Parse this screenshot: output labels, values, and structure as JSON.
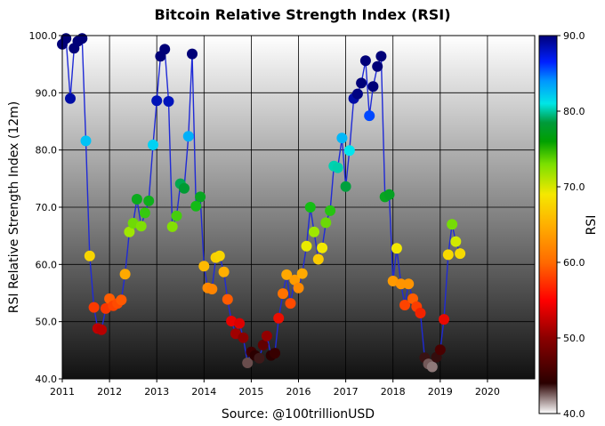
{
  "chart_data": {
    "type": "scatter",
    "title": "Bitcoin Relative Strength Index (RSI)",
    "xlabel": "Source: @100trillionUSD",
    "ylabel": "RSI Relative Strength Index (12m)",
    "colorbar_label": "RSI",
    "xlim": [
      2011.0,
      2021.0
    ],
    "ylim": [
      40.0,
      100.0
    ],
    "x_ticks": [
      2011,
      2012,
      2013,
      2014,
      2015,
      2016,
      2017,
      2018,
      2019,
      2020
    ],
    "x_tick_labels": [
      "2011",
      "2012",
      "2013",
      "2014",
      "2015",
      "2016",
      "2017",
      "2018",
      "2019",
      "2020"
    ],
    "y_ticks": [
      40,
      50,
      60,
      70,
      80,
      90,
      100
    ],
    "y_tick_labels": [
      "40.0",
      "50.0",
      "60.0",
      "70.0",
      "80.0",
      "90.0",
      "100.0"
    ],
    "colorbar_ticks": [
      40,
      50,
      60,
      70,
      80,
      90
    ],
    "colorbar_tick_labels": [
      "40.0",
      "50.0",
      "60.0",
      "70.0",
      "80.0",
      "90.0"
    ],
    "colorbar_range": [
      40,
      90
    ],
    "grid": true,
    "line_color": "#1f2ad6",
    "points": [
      {
        "x": 2011.0,
        "y": 98.5
      },
      {
        "x": 2011.08,
        "y": 99.5
      },
      {
        "x": 2011.17,
        "y": 89.0
      },
      {
        "x": 2011.25,
        "y": 97.8
      },
      {
        "x": 2011.33,
        "y": 99.0
      },
      {
        "x": 2011.42,
        "y": 99.5
      },
      {
        "x": 2011.5,
        "y": 81.6
      },
      {
        "x": 2011.58,
        "y": 61.5
      },
      {
        "x": 2011.67,
        "y": 52.5
      },
      {
        "x": 2011.75,
        "y": 48.8
      },
      {
        "x": 2011.83,
        "y": 48.6
      },
      {
        "x": 2011.92,
        "y": 52.3
      },
      {
        "x": 2012.0,
        "y": 54.0
      },
      {
        "x": 2012.08,
        "y": 52.8
      },
      {
        "x": 2012.17,
        "y": 53.2
      },
      {
        "x": 2012.25,
        "y": 53.8
      },
      {
        "x": 2012.33,
        "y": 58.3
      },
      {
        "x": 2012.42,
        "y": 65.7
      },
      {
        "x": 2012.5,
        "y": 67.2
      },
      {
        "x": 2012.58,
        "y": 71.4
      },
      {
        "x": 2012.67,
        "y": 66.7
      },
      {
        "x": 2012.75,
        "y": 69.0
      },
      {
        "x": 2012.83,
        "y": 71.1
      },
      {
        "x": 2012.92,
        "y": 80.9
      },
      {
        "x": 2013.0,
        "y": 88.6
      },
      {
        "x": 2013.08,
        "y": 96.4
      },
      {
        "x": 2013.17,
        "y": 97.6
      },
      {
        "x": 2013.25,
        "y": 88.5
      },
      {
        "x": 2013.33,
        "y": 66.6
      },
      {
        "x": 2013.42,
        "y": 68.5
      },
      {
        "x": 2013.5,
        "y": 74.1
      },
      {
        "x": 2013.58,
        "y": 73.3
      },
      {
        "x": 2013.67,
        "y": 82.4
      },
      {
        "x": 2013.75,
        "y": 96.8
      },
      {
        "x": 2013.83,
        "y": 70.2
      },
      {
        "x": 2013.92,
        "y": 71.8
      },
      {
        "x": 2014.0,
        "y": 59.7
      },
      {
        "x": 2014.08,
        "y": 55.9
      },
      {
        "x": 2014.17,
        "y": 55.7
      },
      {
        "x": 2014.25,
        "y": 61.2
      },
      {
        "x": 2014.33,
        "y": 61.5
      },
      {
        "x": 2014.42,
        "y": 58.7
      },
      {
        "x": 2014.5,
        "y": 53.9
      },
      {
        "x": 2014.58,
        "y": 50.1
      },
      {
        "x": 2014.67,
        "y": 47.9
      },
      {
        "x": 2014.75,
        "y": 49.7
      },
      {
        "x": 2014.83,
        "y": 47.2
      },
      {
        "x": 2014.92,
        "y": 42.8
      },
      {
        "x": 2015.0,
        "y": 44.7
      },
      {
        "x": 2015.08,
        "y": 44.1
      },
      {
        "x": 2015.17,
        "y": 43.6
      },
      {
        "x": 2015.25,
        "y": 45.9
      },
      {
        "x": 2015.33,
        "y": 47.5
      },
      {
        "x": 2015.42,
        "y": 44.1
      },
      {
        "x": 2015.5,
        "y": 44.5
      },
      {
        "x": 2015.58,
        "y": 50.6
      },
      {
        "x": 2015.67,
        "y": 54.9
      },
      {
        "x": 2015.75,
        "y": 58.2
      },
      {
        "x": 2015.83,
        "y": 53.2
      },
      {
        "x": 2015.92,
        "y": 57.3
      },
      {
        "x": 2016.0,
        "y": 55.9
      },
      {
        "x": 2016.08,
        "y": 58.4
      },
      {
        "x": 2016.17,
        "y": 63.2
      },
      {
        "x": 2016.25,
        "y": 70.0
      },
      {
        "x": 2016.33,
        "y": 65.7
      },
      {
        "x": 2016.42,
        "y": 60.9
      },
      {
        "x": 2016.5,
        "y": 62.9
      },
      {
        "x": 2016.58,
        "y": 67.3
      },
      {
        "x": 2016.67,
        "y": 69.4
      },
      {
        "x": 2016.75,
        "y": 77.2
      },
      {
        "x": 2016.83,
        "y": 76.9
      },
      {
        "x": 2016.92,
        "y": 82.1
      },
      {
        "x": 2017.0,
        "y": 73.6
      },
      {
        "x": 2017.08,
        "y": 79.9
      },
      {
        "x": 2017.17,
        "y": 89.0
      },
      {
        "x": 2017.25,
        "y": 89.8
      },
      {
        "x": 2017.33,
        "y": 91.7
      },
      {
        "x": 2017.42,
        "y": 95.6
      },
      {
        "x": 2017.5,
        "y": 86.0
      },
      {
        "x": 2017.58,
        "y": 91.1
      },
      {
        "x": 2017.67,
        "y": 94.6
      },
      {
        "x": 2017.75,
        "y": 96.4
      },
      {
        "x": 2017.83,
        "y": 71.8
      },
      {
        "x": 2017.92,
        "y": 72.2
      },
      {
        "x": 2018.0,
        "y": 57.1
      },
      {
        "x": 2018.08,
        "y": 62.8
      },
      {
        "x": 2018.17,
        "y": 56.6
      },
      {
        "x": 2018.25,
        "y": 52.9
      },
      {
        "x": 2018.33,
        "y": 56.6
      },
      {
        "x": 2018.42,
        "y": 54.0
      },
      {
        "x": 2018.5,
        "y": 52.6
      },
      {
        "x": 2018.58,
        "y": 51.5
      },
      {
        "x": 2018.67,
        "y": 43.7
      },
      {
        "x": 2018.75,
        "y": 42.6
      },
      {
        "x": 2018.83,
        "y": 42.1
      },
      {
        "x": 2018.92,
        "y": 43.8
      },
      {
        "x": 2019.0,
        "y": 45.1
      },
      {
        "x": 2019.08,
        "y": 50.4
      },
      {
        "x": 2019.17,
        "y": 61.7
      },
      {
        "x": 2019.25,
        "y": 67.0
      },
      {
        "x": 2019.33,
        "y": 64.0
      },
      {
        "x": 2019.42,
        "y": 61.9
      }
    ]
  }
}
